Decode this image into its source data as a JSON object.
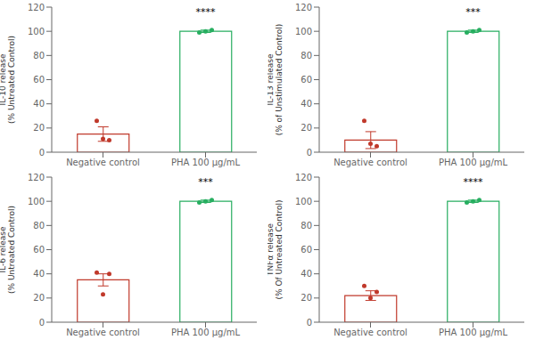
{
  "chart_data": [
    {
      "type": "bar",
      "y_label": "IL-10 release\n(% Untreated Control)",
      "categories": [
        "Negative control",
        "PHA 100 µg/mL"
      ],
      "values": [
        15,
        100
      ],
      "errors": [
        6,
        1
      ],
      "points": [
        [
          26,
          10,
          11
        ],
        [
          99,
          101,
          100
        ]
      ],
      "annotations": [
        {
          "text": "****",
          "category": "PHA 100 µg/mL",
          "y": 112
        }
      ],
      "colors": [
        "#c0392b",
        "#27ae60"
      ],
      "ylim": [
        0,
        120
      ],
      "yticks": [
        0,
        20,
        40,
        60,
        80,
        100,
        120
      ],
      "grid": false
    },
    {
      "type": "bar",
      "y_label": "IL-13 release\n(% of Unstimulated Control)",
      "categories": [
        "Negative control",
        "PHA 100 µg/mL"
      ],
      "values": [
        10,
        100
      ],
      "errors": [
        7,
        1
      ],
      "points": [
        [
          26,
          5,
          7
        ],
        [
          99,
          101,
          100
        ]
      ],
      "annotations": [
        {
          "text": "***",
          "category": "PHA 100 µg/mL",
          "y": 112
        }
      ],
      "colors": [
        "#c0392b",
        "#27ae60"
      ],
      "ylim": [
        0,
        120
      ],
      "yticks": [
        0,
        20,
        40,
        60,
        80,
        100,
        120
      ],
      "grid": false
    },
    {
      "type": "bar",
      "y_label": "IL-6 release\n(% Untreated Control)",
      "categories": [
        "Negative control",
        "PHA 100 µg/mL"
      ],
      "values": [
        35,
        100
      ],
      "errors": [
        5,
        1
      ],
      "points": [
        [
          41,
          40,
          23
        ],
        [
          99,
          101,
          100
        ]
      ],
      "annotations": [
        {
          "text": "***",
          "category": "PHA 100 µg/mL",
          "y": 112
        }
      ],
      "colors": [
        "#c0392b",
        "#27ae60"
      ],
      "ylim": [
        0,
        120
      ],
      "yticks": [
        0,
        20,
        40,
        60,
        80,
        100,
        120
      ],
      "grid": false
    },
    {
      "type": "bar",
      "y_label": "TNFα release\n(% Of Untreated Control)",
      "categories": [
        "Negative control",
        "PHA 100 µg/mL"
      ],
      "values": [
        22,
        100
      ],
      "errors": [
        4,
        1
      ],
      "points": [
        [
          30,
          25,
          20
        ],
        [
          99,
          101,
          100
        ]
      ],
      "annotations": [
        {
          "text": "****",
          "category": "PHA 100 µg/mL",
          "y": 112
        }
      ],
      "colors": [
        "#c0392b",
        "#27ae60"
      ],
      "ylim": [
        0,
        120
      ],
      "yticks": [
        0,
        20,
        40,
        60,
        80,
        100,
        120
      ],
      "grid": false
    }
  ]
}
